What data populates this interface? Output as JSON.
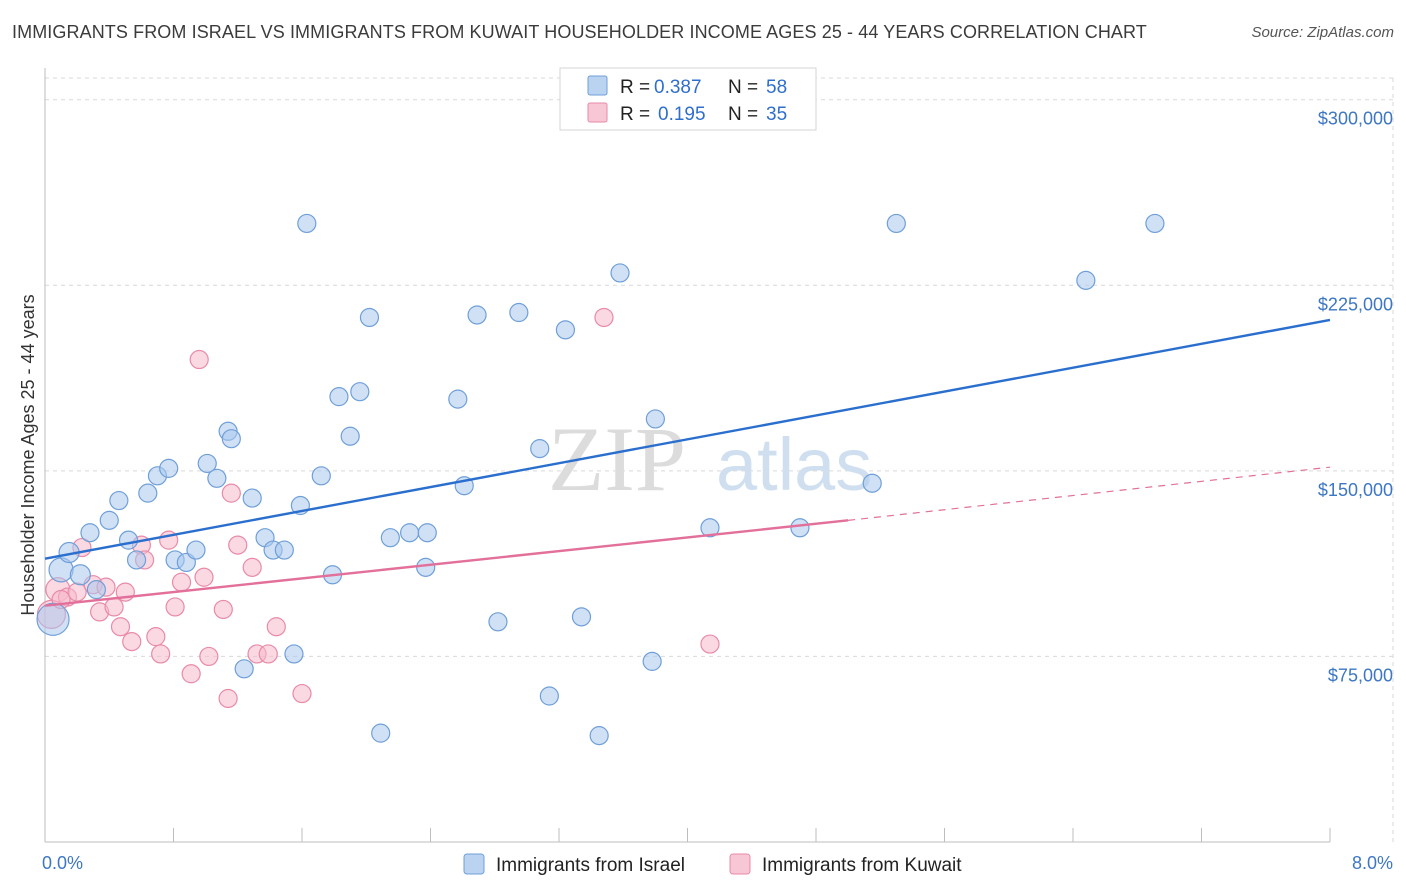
{
  "title": "IMMIGRANTS FROM ISRAEL VS IMMIGRANTS FROM KUWAIT HOUSEHOLDER INCOME AGES 25 - 44 YEARS CORRELATION CHART",
  "source": "Source: ZipAtlas.com",
  "watermark": {
    "zip": "ZIP",
    "atlas": "atlas"
  },
  "legend": {
    "r_label": "R =",
    "n_label": "N =",
    "rows": [
      {
        "r": "0.387",
        "n": "58"
      },
      {
        "r": "0.195",
        "n": "35"
      }
    ]
  },
  "colors": {
    "israel_fill": "#a9c8ee",
    "israel_stroke": "#6f9fd8",
    "israel_line": "#2a6fce",
    "kuwait_fill": "#f6b9cc",
    "kuwait_stroke": "#e98aa8",
    "kuwait_line": "#e2709a",
    "tick_text": "#3d77c4",
    "grid": "#d9d9d9"
  },
  "chart_data": {
    "type": "scatter",
    "title": "IMMIGRANTS FROM ISRAEL VS IMMIGRANTS FROM KUWAIT HOUSEHOLDER INCOME AGES 25 - 44 YEARS CORRELATION CHART",
    "xlabel": "",
    "ylabel": "Householder Income Ages 25 - 44 years",
    "xlim": [
      0,
      8
    ],
    "ylim": [
      0,
      310000
    ],
    "x_tick_labels": [
      "0.0%",
      "8.0%"
    ],
    "y_ticks": [
      {
        "value": 75000,
        "label": "$75,000"
      },
      {
        "value": 150000,
        "label": "$150,000"
      },
      {
        "value": 225000,
        "label": "$225,000"
      },
      {
        "value": 300000,
        "label": "$300,000"
      }
    ],
    "grid": true,
    "legend_placement": "top-center",
    "series": [
      {
        "name": "Immigrants from Israel",
        "r": 0.387,
        "n": 58,
        "trend": {
          "x": [
            0,
            8
          ],
          "y": [
            114500,
            211000
          ],
          "dashed_to": null
        },
        "points": [
          {
            "x": 0.05,
            "y": 90000,
            "s": 16
          },
          {
            "x": 0.1,
            "y": 110000,
            "s": 12
          },
          {
            "x": 0.15,
            "y": 117000,
            "s": 10
          },
          {
            "x": 0.22,
            "y": 108000,
            "s": 10
          },
          {
            "x": 0.28,
            "y": 125000,
            "s": 9
          },
          {
            "x": 0.32,
            "y": 102000,
            "s": 9
          },
          {
            "x": 0.4,
            "y": 130000,
            "s": 9
          },
          {
            "x": 0.46,
            "y": 138000,
            "s": 9
          },
          {
            "x": 0.52,
            "y": 122000,
            "s": 9
          },
          {
            "x": 0.57,
            "y": 114000,
            "s": 9
          },
          {
            "x": 0.64,
            "y": 141000,
            "s": 9
          },
          {
            "x": 0.7,
            "y": 148000,
            "s": 9
          },
          {
            "x": 0.77,
            "y": 151000,
            "s": 9
          },
          {
            "x": 0.81,
            "y": 114000,
            "s": 9
          },
          {
            "x": 0.88,
            "y": 113000,
            "s": 9
          },
          {
            "x": 0.94,
            "y": 118000,
            "s": 9
          },
          {
            "x": 1.01,
            "y": 153000,
            "s": 9
          },
          {
            "x": 1.07,
            "y": 147000,
            "s": 9
          },
          {
            "x": 1.14,
            "y": 166000,
            "s": 9
          },
          {
            "x": 1.16,
            "y": 163000,
            "s": 9
          },
          {
            "x": 1.24,
            "y": 70000,
            "s": 9
          },
          {
            "x": 1.29,
            "y": 139000,
            "s": 9
          },
          {
            "x": 1.37,
            "y": 123000,
            "s": 9
          },
          {
            "x": 1.42,
            "y": 118000,
            "s": 9
          },
          {
            "x": 1.49,
            "y": 118000,
            "s": 9
          },
          {
            "x": 1.55,
            "y": 76000,
            "s": 9
          },
          {
            "x": 1.59,
            "y": 136000,
            "s": 9
          },
          {
            "x": 1.63,
            "y": 250000,
            "s": 9
          },
          {
            "x": 1.72,
            "y": 148000,
            "s": 9
          },
          {
            "x": 1.79,
            "y": 108000,
            "s": 9
          },
          {
            "x": 1.83,
            "y": 180000,
            "s": 9
          },
          {
            "x": 1.9,
            "y": 164000,
            "s": 9
          },
          {
            "x": 1.96,
            "y": 182000,
            "s": 9
          },
          {
            "x": 2.02,
            "y": 212000,
            "s": 9
          },
          {
            "x": 2.09,
            "y": 44000,
            "s": 9
          },
          {
            "x": 2.15,
            "y": 123000,
            "s": 9
          },
          {
            "x": 2.27,
            "y": 125000,
            "s": 9
          },
          {
            "x": 2.37,
            "y": 111000,
            "s": 9
          },
          {
            "x": 2.38,
            "y": 125000,
            "s": 9
          },
          {
            "x": 2.57,
            "y": 179000,
            "s": 9
          },
          {
            "x": 2.61,
            "y": 144000,
            "s": 9
          },
          {
            "x": 2.69,
            "y": 213000,
            "s": 9
          },
          {
            "x": 2.82,
            "y": 89000,
            "s": 9
          },
          {
            "x": 2.95,
            "y": 214000,
            "s": 9
          },
          {
            "x": 3.08,
            "y": 159000,
            "s": 9
          },
          {
            "x": 3.14,
            "y": 59000,
            "s": 9
          },
          {
            "x": 3.24,
            "y": 207000,
            "s": 9
          },
          {
            "x": 3.34,
            "y": 91000,
            "s": 9
          },
          {
            "x": 3.45,
            "y": 43000,
            "s": 9
          },
          {
            "x": 3.58,
            "y": 230000,
            "s": 9
          },
          {
            "x": 3.78,
            "y": 73000,
            "s": 9
          },
          {
            "x": 3.8,
            "y": 171000,
            "s": 9
          },
          {
            "x": 4.14,
            "y": 127000,
            "s": 9
          },
          {
            "x": 4.7,
            "y": 127000,
            "s": 9
          },
          {
            "x": 5.15,
            "y": 145000,
            "s": 9
          },
          {
            "x": 5.3,
            "y": 250000,
            "s": 9
          },
          {
            "x": 6.48,
            "y": 227000,
            "s": 9
          },
          {
            "x": 6.91,
            "y": 250000,
            "s": 9
          }
        ]
      },
      {
        "name": "Immigrants from Kuwait",
        "r": 0.195,
        "n": 35,
        "trend": {
          "x": [
            0,
            5.0
          ],
          "y": [
            95500,
            130000
          ],
          "dashed_to": {
            "x": 8,
            "y": 151500
          }
        },
        "points": [
          {
            "x": 0.04,
            "y": 92000,
            "s": 14
          },
          {
            "x": 0.08,
            "y": 102000,
            "s": 12
          },
          {
            "x": 0.14,
            "y": 99000,
            "s": 9
          },
          {
            "x": 0.2,
            "y": 101000,
            "s": 9
          },
          {
            "x": 0.23,
            "y": 119000,
            "s": 9
          },
          {
            "x": 0.3,
            "y": 104000,
            "s": 9
          },
          {
            "x": 0.34,
            "y": 93000,
            "s": 9
          },
          {
            "x": 0.38,
            "y": 103000,
            "s": 9
          },
          {
            "x": 0.43,
            "y": 95000,
            "s": 9
          },
          {
            "x": 0.47,
            "y": 87000,
            "s": 9
          },
          {
            "x": 0.5,
            "y": 101000,
            "s": 9
          },
          {
            "x": 0.54,
            "y": 81000,
            "s": 9
          },
          {
            "x": 0.6,
            "y": 120000,
            "s": 9
          },
          {
            "x": 0.62,
            "y": 114000,
            "s": 9
          },
          {
            "x": 0.69,
            "y": 83000,
            "s": 9
          },
          {
            "x": 0.72,
            "y": 76000,
            "s": 9
          },
          {
            "x": 0.77,
            "y": 122000,
            "s": 9
          },
          {
            "x": 0.81,
            "y": 95000,
            "s": 9
          },
          {
            "x": 0.85,
            "y": 105000,
            "s": 9
          },
          {
            "x": 0.91,
            "y": 68000,
            "s": 9
          },
          {
            "x": 0.96,
            "y": 195000,
            "s": 9
          },
          {
            "x": 0.99,
            "y": 107000,
            "s": 9
          },
          {
            "x": 1.02,
            "y": 75000,
            "s": 9
          },
          {
            "x": 1.11,
            "y": 94000,
            "s": 9
          },
          {
            "x": 1.14,
            "y": 58000,
            "s": 9
          },
          {
            "x": 1.16,
            "y": 141000,
            "s": 9
          },
          {
            "x": 1.2,
            "y": 120000,
            "s": 9
          },
          {
            "x": 1.29,
            "y": 111000,
            "s": 9
          },
          {
            "x": 1.32,
            "y": 76000,
            "s": 9
          },
          {
            "x": 1.39,
            "y": 76000,
            "s": 9
          },
          {
            "x": 1.44,
            "y": 87000,
            "s": 9
          },
          {
            "x": 1.6,
            "y": 60000,
            "s": 9
          },
          {
            "x": 3.48,
            "y": 212000,
            "s": 9
          },
          {
            "x": 4.14,
            "y": 80000,
            "s": 9
          },
          {
            "x": 0.1,
            "y": 98000,
            "s": 9
          }
        ]
      }
    ]
  },
  "bottom_legend": [
    "Immigrants from Israel",
    "Immigrants from Kuwait"
  ]
}
